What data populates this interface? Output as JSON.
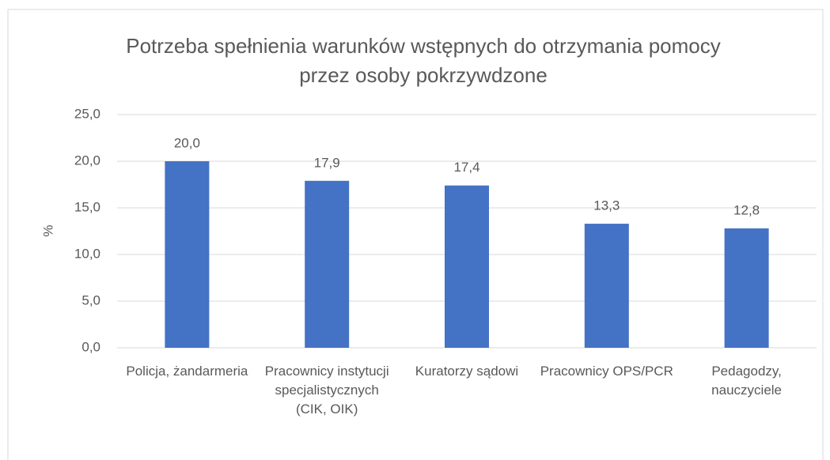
{
  "chart_data": {
    "type": "bar",
    "title": "Potrzeba spełnienia warunków wstępnych do otrzymania pomocy przez osoby pokrzywdzone",
    "ylabel": "%",
    "categories": [
      "Policja, żandarmeria",
      "Pracownicy instytucji specjalistycznych (CIK, OIK)",
      "Kuratorzy sądowi",
      "Pracownicy OPS/PCR",
      "Pedagodzy, nauczyciele"
    ],
    "values": [
      20.0,
      17.9,
      17.4,
      13.3,
      12.8
    ],
    "value_labels": [
      "20,0",
      "17,9",
      "17,4",
      "13,3",
      "12,8"
    ],
    "color": "#4472c4",
    "ylim": [
      0,
      25
    ],
    "yticks": [
      {
        "value": 0,
        "label": "0,0"
      },
      {
        "value": 5,
        "label": "5,0"
      },
      {
        "value": 10,
        "label": "10,0"
      },
      {
        "value": 15,
        "label": "15,0"
      },
      {
        "value": 20,
        "label": "20,0"
      },
      {
        "value": 25,
        "label": "25,0"
      }
    ],
    "grid": true
  }
}
